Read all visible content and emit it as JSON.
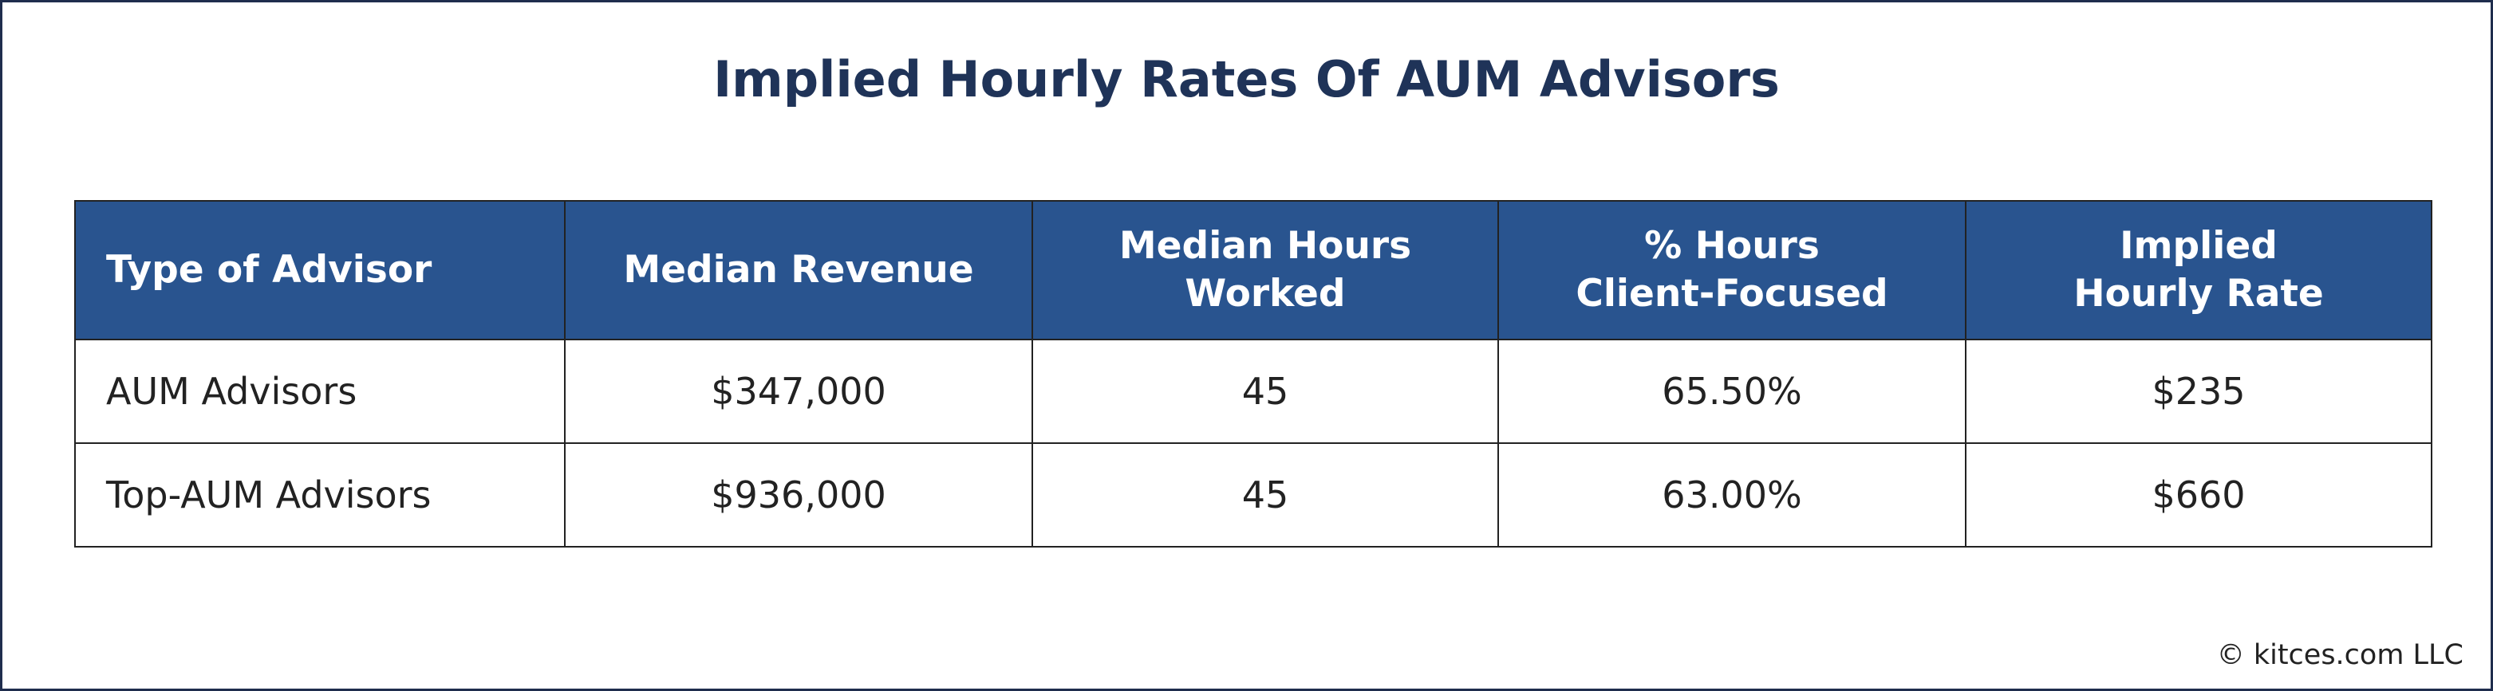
{
  "title": "Implied Hourly Rates Of AUM Advisors",
  "table": {
    "header": [
      "Type of Advisor",
      "Median Revenue",
      "Median Hours\nWorked",
      "% Hours\nClient-Focused",
      "Implied\nHourly Rate"
    ],
    "rows": [
      [
        "AUM Advisors",
        "$347,000",
        "45",
        "65.50%",
        "$235"
      ],
      [
        "Top-AUM Advisors",
        "$936,000",
        "45",
        "63.00%",
        "$660"
      ]
    ]
  },
  "footer": "© kitces.com LLC"
}
